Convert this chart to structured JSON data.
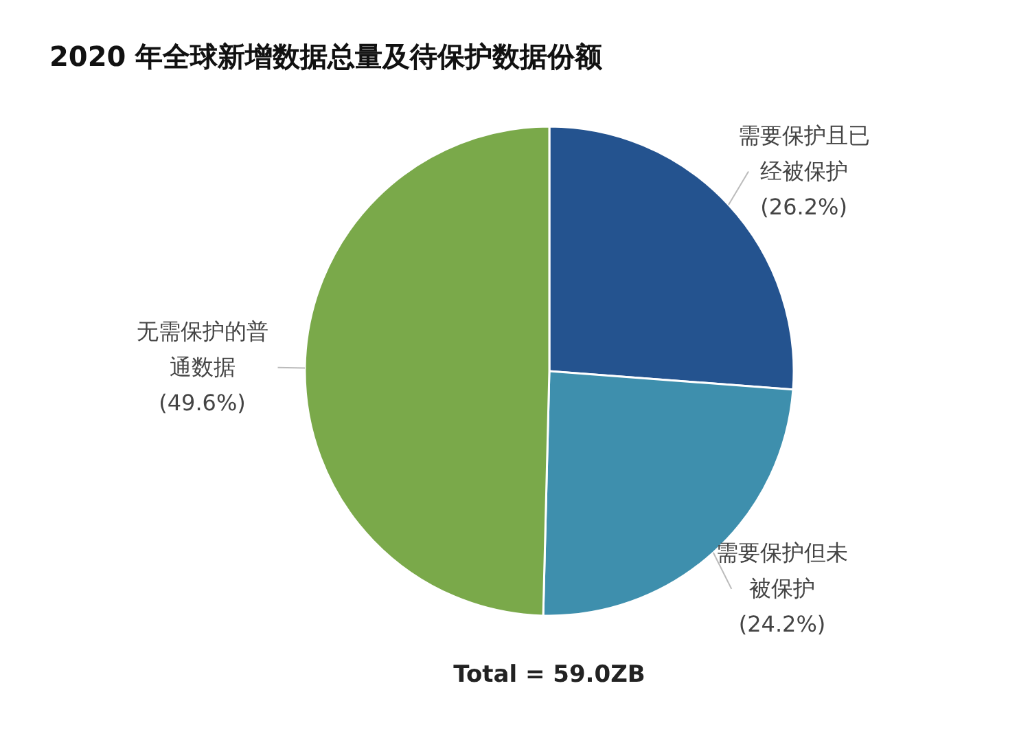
{
  "chart_data": {
    "type": "pie",
    "title": "2020 年全球新增数据总量及待保护数据份额",
    "categories": [
      "需要保护且已经被保护",
      "需要保护但未被保护",
      "无需保护的普通数据"
    ],
    "values": [
      26.2,
      24.2,
      49.6
    ],
    "colors": [
      "#24538f",
      "#3e8fad",
      "#7aa94a"
    ],
    "value_labels": [
      "(26.2%)",
      "(24.2%)",
      "(49.6%)"
    ],
    "annotations": [
      "Total = 59.0ZB"
    ]
  }
}
